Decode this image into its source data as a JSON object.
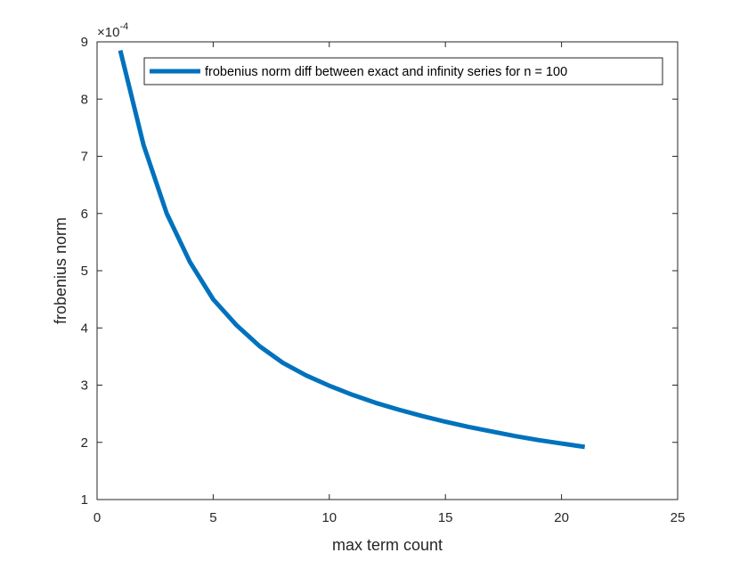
{
  "chart_data": {
    "type": "line",
    "xlabel": "max term count",
    "ylabel": "frobenius norm",
    "exponent_label": "×10",
    "exponent_power": "-4",
    "xlim": [
      0,
      25
    ],
    "ylim": [
      1,
      9
    ],
    "y_scale_factor": 0.0001,
    "x_ticks": [
      0,
      5,
      10,
      15,
      20,
      25
    ],
    "y_ticks": [
      1,
      2,
      3,
      4,
      5,
      6,
      7,
      8,
      9
    ],
    "grid": false,
    "legend_position": "top",
    "series": [
      {
        "name": "frobenius norm diff between exact and infinity series for n = 100",
        "color": "#0072BD",
        "x": [
          1,
          2,
          3,
          4,
          5,
          6,
          7,
          8,
          9,
          10,
          11,
          12,
          13,
          14,
          15,
          16,
          17,
          18,
          19,
          20,
          21
        ],
        "y": [
          8.85,
          7.2,
          6.0,
          5.15,
          4.5,
          4.05,
          3.68,
          3.39,
          3.17,
          2.99,
          2.83,
          2.69,
          2.57,
          2.46,
          2.36,
          2.27,
          2.19,
          2.11,
          2.04,
          1.98,
          1.92
        ]
      }
    ]
  }
}
